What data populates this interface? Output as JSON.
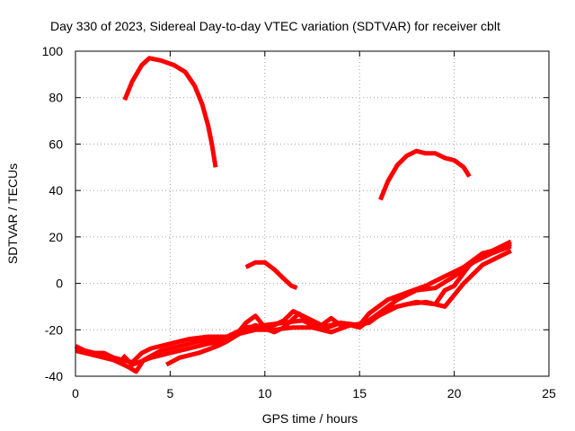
{
  "chart_data": {
    "type": "line",
    "title": "Day 330 of 2023, Sidereal Day-to-day VTEC variation (SDTVAR) for receiver cblt",
    "xlabel": "GPS time / hours",
    "ylabel": "SDTVAR / TECUs",
    "xlim": [
      0,
      25
    ],
    "ylim": [
      -40,
      100
    ],
    "xticks": [
      0,
      5,
      10,
      15,
      20,
      25
    ],
    "yticks": [
      -40,
      -20,
      0,
      20,
      40,
      60,
      80,
      100
    ],
    "xtick_labels": [
      "0",
      "5",
      "10",
      "15",
      "20",
      "25"
    ],
    "ytick_labels": [
      "-40",
      "-20",
      "0",
      "20",
      "40",
      "60",
      "80",
      "100"
    ],
    "grid": true,
    "color": "#ff0000",
    "series": [
      {
        "name": "arc-high-morning",
        "points": [
          [
            2.6,
            79
          ],
          [
            3.0,
            87
          ],
          [
            3.5,
            94
          ],
          [
            3.9,
            97
          ],
          [
            4.5,
            96
          ],
          [
            5.2,
            94
          ],
          [
            5.8,
            91
          ],
          [
            6.3,
            85
          ],
          [
            6.7,
            77
          ],
          [
            7.0,
            68
          ],
          [
            7.2,
            60
          ],
          [
            7.4,
            50
          ]
        ]
      },
      {
        "name": "arc-mid-day",
        "points": [
          [
            9.0,
            7
          ],
          [
            9.5,
            9
          ],
          [
            10.0,
            9
          ],
          [
            10.5,
            6
          ],
          [
            11.0,
            2
          ],
          [
            11.4,
            -1
          ],
          [
            11.7,
            -2
          ]
        ]
      },
      {
        "name": "arc-high-evening",
        "points": [
          [
            16.1,
            36
          ],
          [
            16.5,
            44
          ],
          [
            17.0,
            51
          ],
          [
            17.5,
            55
          ],
          [
            18.0,
            57
          ],
          [
            18.5,
            56
          ],
          [
            19.0,
            56
          ],
          [
            19.5,
            54
          ],
          [
            20.0,
            53
          ],
          [
            20.5,
            50
          ],
          [
            20.8,
            46
          ]
        ]
      },
      {
        "name": "band-a",
        "points": [
          [
            0.0,
            -27
          ],
          [
            0.5,
            -29
          ],
          [
            1.0,
            -30
          ],
          [
            1.5,
            -30
          ],
          [
            2.0,
            -32
          ],
          [
            2.5,
            -33
          ],
          [
            3.0,
            -34
          ],
          [
            3.5,
            -30
          ],
          [
            4.0,
            -28
          ],
          [
            5.0,
            -26
          ],
          [
            6.0,
            -24
          ],
          [
            7.0,
            -23
          ],
          [
            7.5,
            -23
          ],
          [
            8.0,
            -23
          ],
          [
            8.5,
            -21
          ],
          [
            9.0,
            -19
          ],
          [
            10.0,
            -18
          ],
          [
            11.0,
            -17
          ],
          [
            12.0,
            -16
          ],
          [
            13.0,
            -20
          ],
          [
            14.0,
            -17
          ],
          [
            15.0,
            -19
          ],
          [
            16.0,
            -13
          ],
          [
            17.0,
            -7
          ],
          [
            18.0,
            -3
          ],
          [
            19.0,
            -2
          ],
          [
            20.0,
            3
          ],
          [
            21.0,
            9
          ],
          [
            22.0,
            13
          ],
          [
            23.0,
            16
          ]
        ]
      },
      {
        "name": "band-b",
        "points": [
          [
            0.0,
            -29
          ],
          [
            1.0,
            -31
          ],
          [
            2.0,
            -33
          ],
          [
            2.8,
            -36
          ],
          [
            3.2,
            -38
          ],
          [
            3.6,
            -33
          ],
          [
            4.5,
            -29
          ],
          [
            5.5,
            -27
          ],
          [
            6.5,
            -25
          ],
          [
            7.5,
            -24
          ],
          [
            8.5,
            -22
          ],
          [
            9.5,
            -20
          ],
          [
            10.5,
            -20
          ],
          [
            11.5,
            -19
          ],
          [
            12.5,
            -19
          ],
          [
            13.5,
            -21
          ],
          [
            14.5,
            -18
          ],
          [
            15.5,
            -17
          ],
          [
            16.5,
            -11
          ],
          [
            17.5,
            -9
          ],
          [
            18.5,
            -8
          ],
          [
            19.5,
            -10
          ],
          [
            20.5,
            0
          ],
          [
            21.5,
            8
          ],
          [
            22.5,
            12
          ],
          [
            23.0,
            14
          ]
        ]
      },
      {
        "name": "band-c",
        "points": [
          [
            2.5,
            -31
          ],
          [
            3.0,
            -35
          ],
          [
            4.0,
            -32
          ],
          [
            5.0,
            -30
          ],
          [
            6.0,
            -28
          ],
          [
            7.0,
            -26
          ],
          [
            7.8,
            -25
          ],
          [
            8.5,
            -22
          ],
          [
            9.0,
            -17
          ],
          [
            9.5,
            -14
          ],
          [
            10.0,
            -19
          ],
          [
            10.5,
            -18
          ],
          [
            11.0,
            -16
          ],
          [
            11.5,
            -12
          ],
          [
            12.0,
            -14
          ],
          [
            12.5,
            -16
          ],
          [
            13.0,
            -18
          ],
          [
            13.5,
            -15
          ],
          [
            14.0,
            -18
          ],
          [
            15.0,
            -18
          ],
          [
            15.5,
            -13
          ],
          [
            16.5,
            -7
          ],
          [
            17.5,
            -4
          ],
          [
            18.5,
            -1
          ],
          [
            19.5,
            3
          ],
          [
            20.5,
            7
          ],
          [
            21.5,
            13
          ],
          [
            22.5,
            15
          ],
          [
            23.0,
            17
          ]
        ]
      },
      {
        "name": "band-d",
        "points": [
          [
            4.8,
            -35
          ],
          [
            5.5,
            -32
          ],
          [
            6.5,
            -30
          ],
          [
            7.5,
            -27
          ],
          [
            8.0,
            -25
          ],
          [
            9.0,
            -20
          ],
          [
            9.5,
            -18
          ],
          [
            10.5,
            -21
          ],
          [
            11.0,
            -19
          ],
          [
            11.8,
            -13
          ],
          [
            12.3,
            -17
          ],
          [
            13.0,
            -19
          ],
          [
            14.0,
            -17
          ],
          [
            15.0,
            -18
          ],
          [
            16.0,
            -14
          ],
          [
            17.0,
            -10
          ],
          [
            18.0,
            -8
          ],
          [
            19.0,
            -9
          ],
          [
            19.5,
            -3
          ],
          [
            20.0,
            -1
          ],
          [
            21.0,
            10
          ],
          [
            22.0,
            14
          ],
          [
            23.0,
            18
          ]
        ]
      }
    ]
  }
}
